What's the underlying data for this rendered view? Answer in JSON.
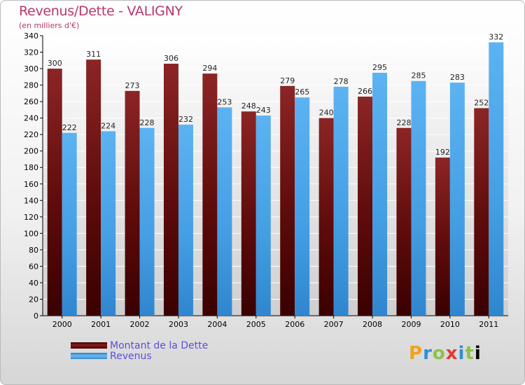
{
  "header": {
    "title": "Revenus/Dette - VALIGNY",
    "subtitle": "(en milliers d'€)"
  },
  "brand": {
    "text": "Proxiti"
  },
  "colors": {
    "dette": "#5a0a0a",
    "revenus": "#4aa3e6",
    "axis_text": "#000000",
    "grid": "#ffffff"
  },
  "chart_data": {
    "type": "bar",
    "title": "Revenus/Dette - VALIGNY",
    "subtitle": "(en milliers d'€)",
    "xlabel": "",
    "ylabel": "",
    "ylim": [
      0,
      340
    ],
    "ytick_step": 20,
    "grid": true,
    "legend_position": "bottom-left",
    "categories": [
      "2000",
      "2001",
      "2002",
      "2003",
      "2004",
      "2005",
      "2006",
      "2007",
      "2008",
      "2009",
      "2010",
      "2011"
    ],
    "series": [
      {
        "name": "Montant de la Dette",
        "values": [
          300,
          311,
          273,
          306,
          294,
          248,
          279,
          240,
          266,
          228,
          192,
          252
        ]
      },
      {
        "name": "Revenus",
        "values": [
          222,
          224,
          228,
          232,
          253,
          243,
          265,
          278,
          295,
          285,
          283,
          332
        ]
      }
    ]
  }
}
